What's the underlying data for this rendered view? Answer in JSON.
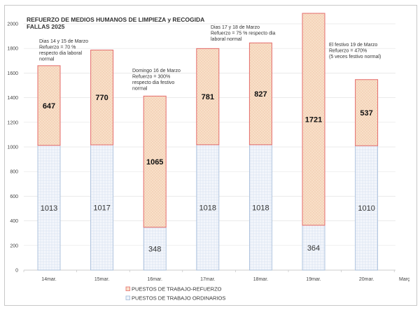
{
  "chart_data": {
    "type": "bar",
    "stacked": true,
    "title": [
      "REFUERZO DE MEDIOS HUMANOS DE LIMPIEZA y RECOGIDA",
      "FALLAS 2025"
    ],
    "categories": [
      "14mar.",
      "15mar.",
      "16mar.",
      "17mar.",
      "18mar.",
      "19mar.",
      "20mar."
    ],
    "xlabel": "Març",
    "ylabel": "",
    "ylim": [
      0,
      2000
    ],
    "yticks": [
      0,
      200,
      400,
      600,
      800,
      1000,
      1200,
      1400,
      1600,
      1800,
      2000
    ],
    "grid": true,
    "legend_position": "bottom",
    "series": [
      {
        "name": "PUESTOS DE TRABAJO  ORDINARIOS",
        "values": [
          1013,
          1017,
          348,
          1018,
          1018,
          364,
          1010
        ],
        "color": "#9fb8d8",
        "fill": "#eef3fa"
      },
      {
        "name": "PUESTOS DE TRABAJO-REFUERZO",
        "values": [
          647,
          770,
          1065,
          781,
          827,
          1721,
          537
        ],
        "color": "#e46b6b",
        "fill": "#f8dfc8"
      }
    ],
    "legend_order": [
      "PUESTOS DE TRABAJO-REFUERZO",
      "PUESTOS DE TRABAJO  ORDINARIOS"
    ],
    "annotations": [
      {
        "category": "14mar.",
        "lines": [
          "Dias 14 y 15 de Marzo",
          "Refuerzo = 70 %",
          "respecto dia laboral",
          "normal"
        ]
      },
      {
        "category": "16mar.",
        "lines": [
          "Domingo 16 de Marzo",
          "Refuerzo = 300%",
          "respecto dia festivo",
          "normal"
        ]
      },
      {
        "category": "17mar.",
        "lines": [
          "Dias 17 y 18 de Marzo",
          "Refuerzo = 75 % respecto dia",
          "laboral normal"
        ]
      },
      {
        "category": "19mar.",
        "lines": [
          "El festivo 19 de Marzo",
          "Refuerzo = 470%",
          "(5 veces festivo normal)"
        ]
      }
    ]
  }
}
